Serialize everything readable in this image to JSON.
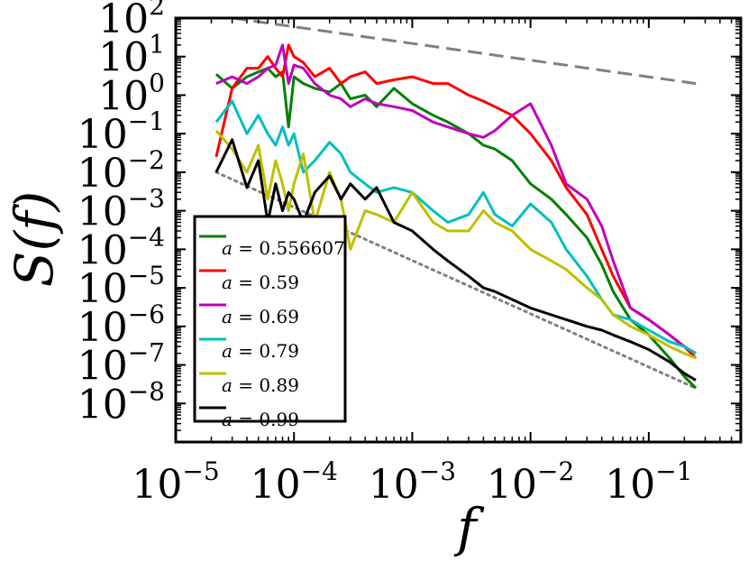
{
  "chart_data": {
    "type": "line",
    "xscale": "log",
    "yscale": "log",
    "xlim": [
      1e-05,
      0.6
    ],
    "ylim": [
      1e-09,
      100
    ],
    "xlabel": "f",
    "ylabel": "S(f)",
    "grid": false,
    "legend_position": "lower-left",
    "x_ticks": [
      {
        "base": "10",
        "exp": "−5",
        "value": 1e-05
      },
      {
        "base": "10",
        "exp": "−4",
        "value": 0.0001
      },
      {
        "base": "10",
        "exp": "−3",
        "value": 0.001
      },
      {
        "base": "10",
        "exp": "−2",
        "value": 0.01
      },
      {
        "base": "10",
        "exp": "−1",
        "value": 0.1
      }
    ],
    "y_ticks": [
      {
        "base": "10",
        "exp": "2",
        "value": 100
      },
      {
        "base": "10",
        "exp": "1",
        "value": 10
      },
      {
        "base": "10",
        "exp": "0",
        "value": 1
      },
      {
        "base": "10",
        "exp": "−1",
        "value": 0.1
      },
      {
        "base": "10",
        "exp": "−2",
        "value": 0.01
      },
      {
        "base": "10",
        "exp": "−3",
        "value": 0.001
      },
      {
        "base": "10",
        "exp": "−4",
        "value": 0.0001
      },
      {
        "base": "10",
        "exp": "−5",
        "value": 1e-05
      },
      {
        "base": "10",
        "exp": "−6",
        "value": 1e-06
      },
      {
        "base": "10",
        "exp": "−7",
        "value": 1e-07
      },
      {
        "base": "10",
        "exp": "−8",
        "value": 1e-08
      }
    ],
    "series": [
      {
        "name": "a = 0.556607",
        "var": "a",
        "eq": " = 0.556607",
        "color": "#008000",
        "points": [
          [
            2.2e-05,
            3.5
          ],
          [
            3e-05,
            1.5
          ],
          [
            4e-05,
            3
          ],
          [
            5e-05,
            4
          ],
          [
            6e-05,
            5
          ],
          [
            7e-05,
            3
          ],
          [
            8e-05,
            4
          ],
          [
            9e-05,
            0.15
          ],
          [
            0.0001,
            3
          ],
          [
            0.00012,
            2
          ],
          [
            0.00015,
            1.5
          ],
          [
            0.0002,
            1.2
          ],
          [
            0.00025,
            2
          ],
          [
            0.0003,
            0.8
          ],
          [
            0.0004,
            1
          ],
          [
            0.0005,
            0.5
          ],
          [
            0.0007,
            1.5
          ],
          [
            0.001,
            0.6
          ],
          [
            0.0015,
            0.3
          ],
          [
            0.002,
            0.2
          ],
          [
            0.003,
            0.1
          ],
          [
            0.004,
            0.05
          ],
          [
            0.005,
            0.04
          ],
          [
            0.007,
            0.02
          ],
          [
            0.01,
            0.005
          ],
          [
            0.015,
            0.002
          ],
          [
            0.02,
            0.0008
          ],
          [
            0.03,
            0.0002
          ],
          [
            0.04,
            4e-05
          ],
          [
            0.05,
            8e-06
          ],
          [
            0.07,
            1.5e-06
          ],
          [
            0.1,
            6e-07
          ],
          [
            0.15,
            1.5e-07
          ],
          [
            0.2,
            5e-08
          ],
          [
            0.25,
            2.5e-08
          ]
        ]
      },
      {
        "name": "a = 0.59",
        "var": "a",
        "eq": " = 0.59",
        "color": "#ff0000",
        "points": [
          [
            2.2e-05,
            0.025
          ],
          [
            3e-05,
            1.5
          ],
          [
            4e-05,
            5
          ],
          [
            5e-05,
            5
          ],
          [
            6e-05,
            10
          ],
          [
            7e-05,
            5
          ],
          [
            8e-05,
            3
          ],
          [
            9e-05,
            20
          ],
          [
            0.0001,
            10
          ],
          [
            0.00012,
            7
          ],
          [
            0.00015,
            3
          ],
          [
            0.0002,
            5
          ],
          [
            0.00025,
            2
          ],
          [
            0.0003,
            3
          ],
          [
            0.0004,
            4
          ],
          [
            0.0005,
            2
          ],
          [
            0.0007,
            2.5
          ],
          [
            0.001,
            3
          ],
          [
            0.0015,
            2
          ],
          [
            0.002,
            2
          ],
          [
            0.003,
            1
          ],
          [
            0.004,
            0.7
          ],
          [
            0.005,
            0.5
          ],
          [
            0.007,
            0.3
          ],
          [
            0.01,
            0.1
          ],
          [
            0.015,
            0.02
          ],
          [
            0.02,
            0.004
          ],
          [
            0.03,
            0.0008
          ],
          [
            0.04,
            0.0001
          ],
          [
            0.05,
            2e-05
          ],
          [
            0.07,
            3e-06
          ],
          [
            0.1,
            1.5e-06
          ],
          [
            0.15,
            6e-07
          ],
          [
            0.2,
            3e-07
          ],
          [
            0.25,
            1.5e-07
          ]
        ]
      },
      {
        "name": "a = 0.69",
        "var": "a",
        "eq": " = 0.69",
        "color": "#bf00bf",
        "points": [
          [
            2.2e-05,
            2
          ],
          [
            3e-05,
            3
          ],
          [
            4e-05,
            2
          ],
          [
            5e-05,
            3
          ],
          [
            6e-05,
            5
          ],
          [
            7e-05,
            6
          ],
          [
            8e-05,
            20
          ],
          [
            9e-05,
            2
          ],
          [
            0.0001,
            6
          ],
          [
            0.00012,
            5
          ],
          [
            0.00015,
            2
          ],
          [
            0.0002,
            1
          ],
          [
            0.00025,
            0.8
          ],
          [
            0.0003,
            0.5
          ],
          [
            0.0004,
            0.8
          ],
          [
            0.0005,
            0.6
          ],
          [
            0.0007,
            0.5
          ],
          [
            0.001,
            0.4
          ],
          [
            0.0015,
            0.2
          ],
          [
            0.002,
            0.15
          ],
          [
            0.003,
            0.1
          ],
          [
            0.004,
            0.08
          ],
          [
            0.005,
            0.12
          ],
          [
            0.007,
            0.3
          ],
          [
            0.01,
            0.6
          ],
          [
            0.015,
            0.05
          ],
          [
            0.02,
            0.005
          ],
          [
            0.03,
            0.002
          ],
          [
            0.04,
            0.0004
          ],
          [
            0.05,
            5e-05
          ],
          [
            0.07,
            3e-06
          ],
          [
            0.1,
            1.5e-06
          ],
          [
            0.15,
            6e-07
          ],
          [
            0.2,
            3e-07
          ],
          [
            0.25,
            2e-07
          ]
        ]
      },
      {
        "name": "a = 0.79",
        "var": "a",
        "eq": " = 0.79",
        "color": "#00bfbf",
        "points": [
          [
            2.2e-05,
            0.2
          ],
          [
            3e-05,
            0.7
          ],
          [
            4e-05,
            0.1
          ],
          [
            5e-05,
            0.3
          ],
          [
            6e-05,
            0.1
          ],
          [
            7e-05,
            0.05
          ],
          [
            8e-05,
            0.15
          ],
          [
            9e-05,
            0.05
          ],
          [
            0.0001,
            0.1
          ],
          [
            0.00012,
            0.01
          ],
          [
            0.00015,
            0.02
          ],
          [
            0.0002,
            0.06
          ],
          [
            0.00025,
            0.03
          ],
          [
            0.0003,
            0.01
          ],
          [
            0.0004,
            0.005
          ],
          [
            0.0005,
            0.003
          ],
          [
            0.0007,
            0.004
          ],
          [
            0.001,
            0.003
          ],
          [
            0.0015,
            0.001
          ],
          [
            0.002,
            0.0005
          ],
          [
            0.003,
            0.0008
          ],
          [
            0.004,
            0.003
          ],
          [
            0.005,
            0.0008
          ],
          [
            0.007,
            0.0004
          ],
          [
            0.01,
            0.0015
          ],
          [
            0.015,
            0.0005
          ],
          [
            0.02,
            0.0001
          ],
          [
            0.03,
            2e-05
          ],
          [
            0.04,
            5e-06
          ],
          [
            0.05,
            2e-06
          ],
          [
            0.07,
            1.5e-06
          ],
          [
            0.1,
            8e-07
          ],
          [
            0.15,
            4e-07
          ],
          [
            0.2,
            3e-07
          ],
          [
            0.25,
            2e-07
          ]
        ]
      },
      {
        "name": "a = 0.89",
        "var": "a",
        "eq": " = 0.89",
        "color": "#bfbf00",
        "points": [
          [
            2.2e-05,
            0.12
          ],
          [
            3e-05,
            0.04
          ],
          [
            4e-05,
            0.01
          ],
          [
            5e-05,
            0.05
          ],
          [
            6e-05,
            0.002
          ],
          [
            7e-05,
            0.02
          ],
          [
            8e-05,
            0.005
          ],
          [
            9e-05,
            0.001
          ],
          [
            0.0001,
            0.005
          ],
          [
            0.00012,
            0.03
          ],
          [
            0.00015,
            0.0005
          ],
          [
            0.0002,
            0.01
          ],
          [
            0.00025,
            0.002
          ],
          [
            0.0003,
            0.0001
          ],
          [
            0.0004,
            0.001
          ],
          [
            0.0005,
            0.0008
          ],
          [
            0.0007,
            0.0005
          ],
          [
            0.001,
            0.003
          ],
          [
            0.0015,
            0.0005
          ],
          [
            0.002,
            0.0003
          ],
          [
            0.003,
            0.0003
          ],
          [
            0.004,
            0.001
          ],
          [
            0.005,
            0.0005
          ],
          [
            0.007,
            0.0003
          ],
          [
            0.01,
            0.0001
          ],
          [
            0.015,
            5e-05
          ],
          [
            0.02,
            3e-05
          ],
          [
            0.03,
            1e-05
          ],
          [
            0.04,
            5e-06
          ],
          [
            0.05,
            2e-06
          ],
          [
            0.07,
            1e-06
          ],
          [
            0.1,
            6e-07
          ],
          [
            0.15,
            3e-07
          ],
          [
            0.2,
            2e-07
          ],
          [
            0.25,
            1.5e-07
          ]
        ]
      },
      {
        "name": "a = 0.99",
        "var": "a",
        "eq": " = 0.99",
        "color": "#000000",
        "points": [
          [
            2.2e-05,
            0.01
          ],
          [
            3e-05,
            0.07
          ],
          [
            4e-05,
            0.004
          ],
          [
            5e-05,
            0.02
          ],
          [
            6e-05,
            0.0005
          ],
          [
            7e-05,
            0.005
          ],
          [
            8e-05,
            0.001
          ],
          [
            9e-05,
            0.003
          ],
          [
            0.0001,
            0.002
          ],
          [
            0.00012,
            0.0005
          ],
          [
            0.00015,
            0.003
          ],
          [
            0.0002,
            0.008
          ],
          [
            0.00025,
            0.002
          ],
          [
            0.0003,
            0.005
          ],
          [
            0.0004,
            0.002
          ],
          [
            0.0005,
            0.004
          ],
          [
            0.0007,
            0.0005
          ],
          [
            0.001,
            0.0003
          ],
          [
            0.0015,
            0.0001
          ],
          [
            0.002,
            5e-05
          ],
          [
            0.003,
            2e-05
          ],
          [
            0.004,
            1e-05
          ],
          [
            0.005,
            8e-06
          ],
          [
            0.007,
            5e-06
          ],
          [
            0.01,
            3e-06
          ],
          [
            0.015,
            2e-06
          ],
          [
            0.02,
            1.5e-06
          ],
          [
            0.03,
            1e-06
          ],
          [
            0.04,
            8e-07
          ],
          [
            0.05,
            6e-07
          ],
          [
            0.07,
            4e-07
          ],
          [
            0.1,
            2.5e-07
          ],
          [
            0.15,
            1.2e-07
          ],
          [
            0.2,
            6e-08
          ],
          [
            0.25,
            4e-08
          ]
        ]
      }
    ],
    "reference_lines": [
      {
        "name": "dashed-slope-reference",
        "style": "dashed",
        "color": "#808080",
        "points": [
          [
            3e-05,
            100
          ],
          [
            0.25,
            2
          ]
        ]
      },
      {
        "name": "dotted-slope-reference",
        "style": "dotted",
        "color": "#808080",
        "points": [
          [
            2.2e-05,
            0.01
          ],
          [
            0.25,
            2.5e-08
          ]
        ]
      }
    ]
  }
}
